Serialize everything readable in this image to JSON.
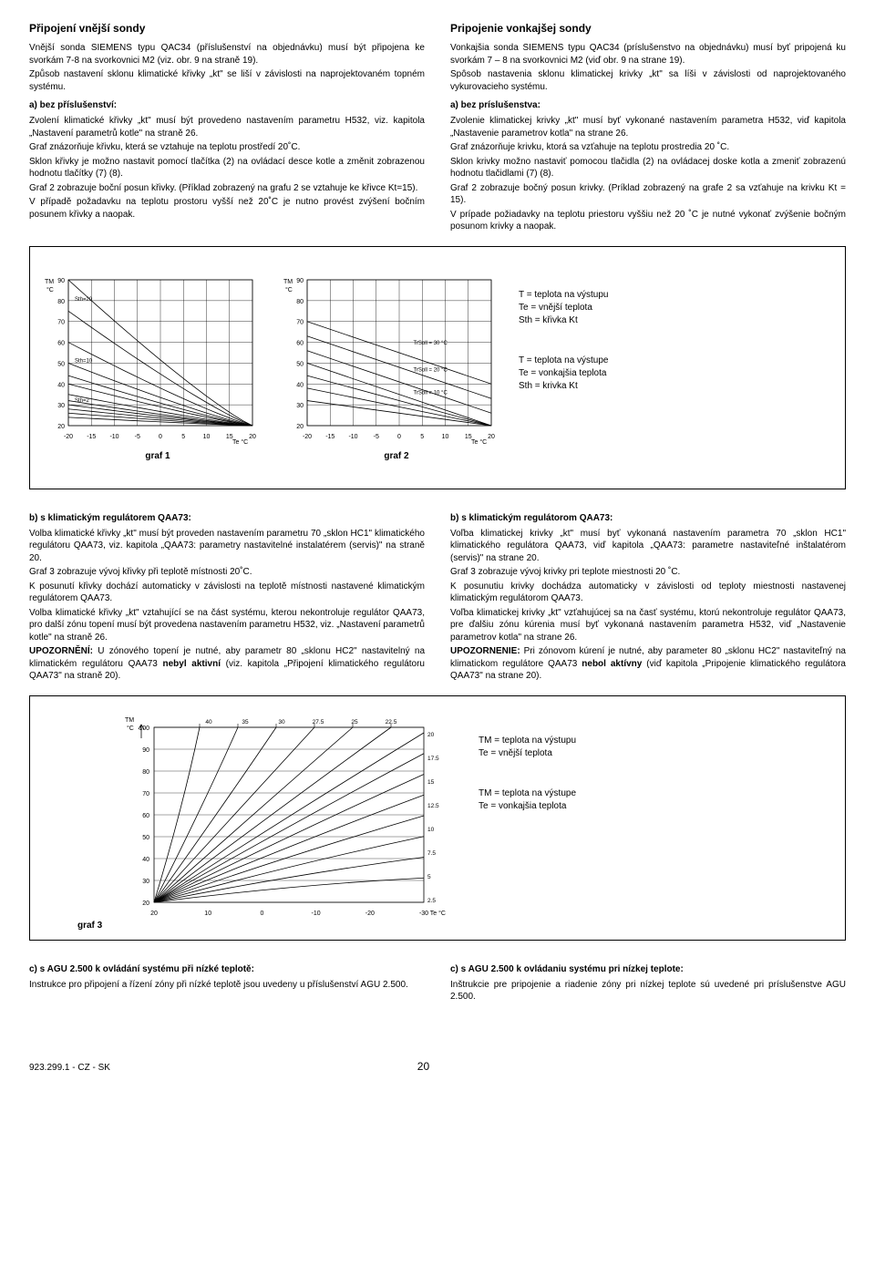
{
  "left_col": {
    "title": "Připojení vnější sondy",
    "p1": "Vnější sonda SIEMENS typu QAC34 (příslušenství na objednávku) musí být připojena ke svorkám 7-8 na svorkovnici M2 (viz. obr. 9 na straně 19).",
    "p2": "Způsob nastavení sklonu klimatické křivky „kt\" se liší v závislosti na naprojektovaném topném systému.",
    "sub_a": "a) bez příslušenství:",
    "a1": "Zvolení klimatické křivky „kt\" musí být provedeno nastavením parametru H532, viz. kapitola „Nastavení parametrů kotle\" na straně 26.",
    "a2": "Graf znázorňuje křivku, která se vztahuje na teplotu prostředí 20˚C.",
    "a3": "Sklon křivky je možno nastavit pomocí tlačítka (2) na ovládací desce kotle a změnit zobrazenou hodnotu tlačítky (7) (8).",
    "a4": "Graf 2 zobrazuje boční posun křivky. (Příklad zobrazený na grafu 2 se vztahuje ke křivce Kt=15).",
    "a5": "V případě požadavku na teplotu prostoru vyšší než 20˚C je nutno provést zvýšení bočním posunem křivky a naopak."
  },
  "right_col": {
    "title": "Pripojenie vonkajšej sondy",
    "p1": "Vonkajšia sonda SIEMENS typu QAC34 (príslušenstvo na objednávku) musí byť pripojená ku svorkám 7 – 8 na svorkovnici M2 (viď obr. 9 na strane 19).",
    "p2": "Spôsob nastavenia sklonu klimatickej krivky „kt\" sa líši v závislosti od naprojektovaného vykurovacieho systému.",
    "sub_a": "a) bez príslušenstva:",
    "a1": "Zvolenie klimatickej krivky „kt\" musí byť vykonané nastavením parametra H532, viď kapitola „Nastavenie parametrov kotla\" na strane 26.",
    "a2": "Graf znázorňuje krivku, ktorá sa vzťahuje na teplotu prostredia 20 ˚C.",
    "a3": "Sklon krivky možno nastaviť pomocou tlačidla (2) na ovládacej doske kotla a zmeniť zobrazenú hodnotu tlačidlami (7) (8).",
    "a4": "Graf 2 zobrazuje bočný posun krivky. (Príklad zobrazený na grafe 2 sa vzťahuje na krivku Kt = 15).",
    "a5": "V prípade požiadavky na teplotu priestoru vyššiu než 20 ˚C je nutné vykonať zvýšenie bočným posunom krivky a naopak."
  },
  "chart1": {
    "tm_label": "TM",
    "tm_sub": "°C",
    "te_label": "Te °C",
    "y_ticks": [
      20,
      30,
      40,
      50,
      60,
      70,
      80,
      90
    ],
    "x_ticks": [
      -20,
      -15,
      -10,
      -5,
      0,
      5,
      10,
      15,
      20
    ],
    "xlim": [
      -20,
      20
    ],
    "ylim": [
      20,
      90
    ],
    "grid_color": "#000",
    "line_color": "#000",
    "bg": "#fff",
    "curves_left_y": [
      90,
      75,
      60,
      50,
      44,
      40,
      35,
      32,
      30,
      28,
      26,
      24
    ],
    "inline_labels": {
      "Sth=20": [
        -19,
        79
      ],
      "Sth=10": [
        -19,
        49.5
      ],
      "Sth=2": [
        -19,
        30.5
      ]
    }
  },
  "chart2": {
    "tm_label": "TM",
    "tm_sub": "°C",
    "te_label": "Te °C",
    "y_ticks": [
      20,
      30,
      40,
      50,
      60,
      70,
      80,
      90
    ],
    "x_ticks": [
      -20,
      -15,
      -10,
      -5,
      0,
      5,
      10,
      15,
      20
    ],
    "xlim": [
      -20,
      20
    ],
    "ylim": [
      20,
      90
    ],
    "grid_color": "#000",
    "line_color": "#000",
    "bg": "#fff",
    "parallel_left_y": [
      70,
      63,
      56,
      50,
      44,
      38,
      32
    ],
    "inline_labels": {
      "TrSoll = 30 °C": [
        9,
        59
      ],
      "TrSoll = 20 °C": [
        9,
        46
      ],
      "TrSoll = 10 °C": [
        9,
        35
      ]
    }
  },
  "legend_cz": {
    "t": "T   = teplota na výstupu",
    "te": "Te  = vnější teplota",
    "sth": "Sth = křivka Kt"
  },
  "legend_sk": {
    "t": "T   = teplota na výstupe",
    "te": "Te  = vonkajšia teplota",
    "sth": "Sth = krivka Kt"
  },
  "graf1": "graf 1",
  "graf2": "graf 2",
  "sec_b_left": {
    "title": "b) s klimatickým regulátorem QAA73:",
    "p1": "Volba klimatické křivky „kt\" musí být proveden nastavením parametru 70 „sklon HC1\" klimatického regulátoru QAA73, viz. kapitola „QAA73: parametry nastavitelné instalatérem (servis)\" na straně 20.",
    "p2": "Graf 3 zobrazuje vývoj křivky při teplotě místnosti 20˚C.",
    "p3": "K posunutí křivky dochází automaticky v závislosti na teplotě místnosti nastavené klimatickým regulátorem QAA73.",
    "p4": "Volba klimatické křivky „kt\" vztahující se na část systému, kterou nekontroluje regulátor QAA73, pro další zónu topení musí být provedena nastavením parametru H532, viz. „Nastavení parametrů kotle\" na straně 26.",
    "p5": "UPOZORNĚNÍ: U zónového topení je nutné, aby parametr 80 „sklonu HC2\" nastavitelný na klimatickém regulátoru QAA73 nebyl aktivní (viz. kapitola „Připojení klimatického regulátoru QAA73\" na straně 20)."
  },
  "sec_b_right": {
    "title": "b) s klimatickým regulátorom QAA73:",
    "p1": "Voľba klimatickej krivky „kt\" musí byť vykonaná nastavením parametra 70 „sklon HC1\" klimatického regulátora QAA73, viď kapitola „QAA73: parametre nastaviteľné inštalatérom (servis)\" na strane 20.",
    "p2": "Graf 3 zobrazuje vývoj krivky pri teplote miestnosti 20 ˚C.",
    "p3": "K posunutiu krivky dochádza automaticky v závislosti od teploty miestnosti nastavenej klimatickým regulátorom QAA73.",
    "p4": "Voľba klimatickej krivky „kt\" vzťahujúcej sa na časť systému, ktorú nekontroluje regulátor QAA73, pre ďalšiu zónu kúrenia musí byť vykonaná nastavením parametra H532, viď „Nastavenie parametrov kotla\" na strane 26.",
    "p5": "UPOZORNENIE: Pri zónovom kúrení je nutné, aby parameter 80 „sklonu HC2\" nastaviteľný na klimatickom regulátore QAA73 nebol aktívny (viď kapitola „Pripojenie klimatického regulátora QAA73\" na strane 20)."
  },
  "chart3": {
    "tm_label": "TM",
    "tm_sub": "°C",
    "te_label": "Te °C",
    "y_left_ticks": [
      20,
      30,
      40,
      50,
      60,
      70,
      80,
      90,
      100
    ],
    "y_right_ticks": [
      2.5,
      5,
      7.5,
      10,
      12.5,
      15,
      17.5,
      20
    ],
    "x_ticks": [
      20,
      10,
      0,
      -10,
      -20,
      -30
    ],
    "top_labels": [
      40,
      35,
      30,
      27.5,
      25,
      22.5
    ],
    "xlim": [
      -30,
      20
    ],
    "ylim": [
      20,
      100
    ],
    "grid_color": "#000",
    "line_color": "#000",
    "bg": "#fff",
    "slopes_right_100": [
      40,
      35,
      30,
      27.5,
      25,
      22.5,
      20,
      17.5,
      15,
      12.5,
      10,
      7.5,
      5,
      2.5
    ]
  },
  "legend3_cz": {
    "tm": "TM = teplota na výstupu",
    "te": "Te  = vnější teplota"
  },
  "legend3_sk": {
    "tm": "TM = teplota na výstupe",
    "te": "Te  = vonkajšia teplota"
  },
  "graf3": "graf 3",
  "sec_c_left": {
    "title": "c) s AGU 2.500 k ovládání systému při nízké teplotě:",
    "p1": "Instrukce pro připojení a řízení zóny při nízké teplotě jsou uvedeny u příslušenství AGU 2.500."
  },
  "sec_c_right": {
    "title": "c) s AGU 2.500 k ovládaniu systému pri nízkej teplote:",
    "p1": "Inštrukcie pre pripojenie a riadenie zóny pri nízkej teplote sú uvedené pri príslušenstve AGU 2.500."
  },
  "footer": {
    "left": "923.299.1 - CZ - SK",
    "page": "20"
  }
}
